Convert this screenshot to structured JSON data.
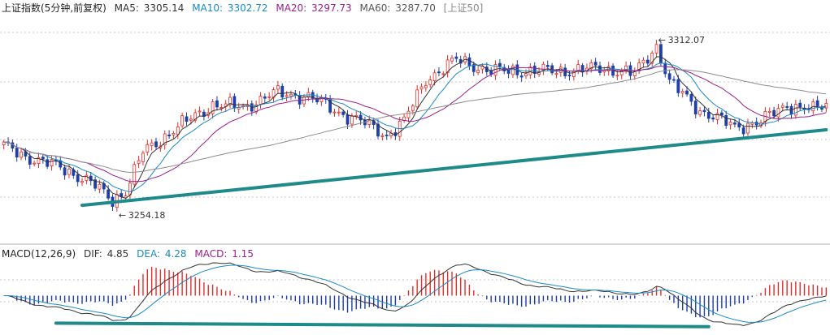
{
  "chart_data": {
    "type": "candlestick",
    "main_panel": {
      "title": "上证指数(5分钟,前复权)",
      "ma_legend": [
        {
          "label": "MA5:",
          "value": "3305.14",
          "color": "#333333"
        },
        {
          "label": "MA10:",
          "value": "3302.72",
          "color": "#1a8ac0"
        },
        {
          "label": "MA20:",
          "value": "3297.73",
          "color": "#9b1f8a"
        },
        {
          "label": "MA60:",
          "value": "3287.70",
          "color": "#555555"
        }
      ],
      "tag": "[上证50]",
      "annotations": {
        "high": "3312.07",
        "low": "3254.18"
      },
      "ylim": [
        3242,
        3322
      ],
      "x_count": 190,
      "price_anchors": [
        [
          0,
          3276
        ],
        [
          6,
          3272
        ],
        [
          14,
          3268
        ],
        [
          20,
          3263
        ],
        [
          25,
          3257
        ],
        [
          28,
          3260
        ],
        [
          32,
          3274
        ],
        [
          40,
          3283
        ],
        [
          48,
          3291
        ],
        [
          55,
          3290
        ],
        [
          62,
          3295
        ],
        [
          70,
          3294
        ],
        [
          76,
          3289
        ],
        [
          82,
          3285
        ],
        [
          88,
          3280
        ],
        [
          92,
          3285
        ],
        [
          97,
          3300
        ],
        [
          104,
          3307
        ],
        [
          112,
          3303
        ],
        [
          118,
          3303
        ],
        [
          128,
          3303
        ],
        [
          138,
          3304
        ],
        [
          145,
          3302
        ],
        [
          150,
          3312
        ],
        [
          153,
          3299
        ],
        [
          160,
          3289
        ],
        [
          168,
          3283
        ],
        [
          174,
          3285
        ],
        [
          180,
          3291
        ],
        [
          186,
          3289
        ],
        [
          190,
          3292
        ]
      ],
      "trendline": [
        [
          18,
          3255
        ],
        [
          189,
          3282
        ]
      ],
      "grid": "horizontal dotted"
    },
    "macd_panel": {
      "title": "MACD(12,26,9)",
      "params": [
        12,
        26,
        9
      ],
      "legend": [
        {
          "label": "DIF:",
          "value": "4.85",
          "color": "#333333"
        },
        {
          "label": "DEA:",
          "value": "4.28",
          "color": "#1a8ac0"
        },
        {
          "label": "MACD:",
          "value": "1.15",
          "color": "#9b1f8a"
        }
      ],
      "trendline": [
        [
          12,
          -4.7
        ],
        [
          162,
          -5.3
        ]
      ]
    },
    "colors": {
      "up": "#e0302c",
      "down": "#1f3fa8",
      "ma5": "#333333",
      "ma10": "#1a8ac0",
      "ma20": "#9b1f8a",
      "ma60": "#8c8c8c",
      "trendline": "#1f8a8a",
      "grid": "#c8c8c8"
    }
  }
}
